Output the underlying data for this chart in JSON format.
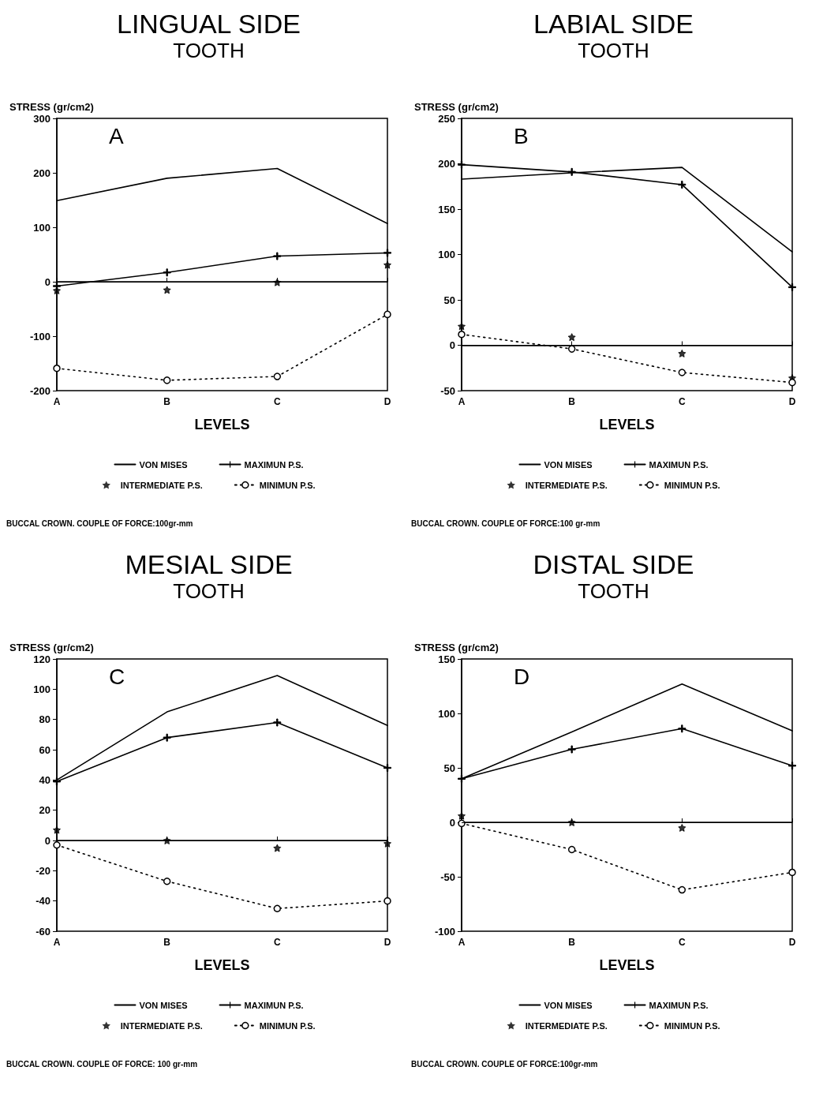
{
  "chart_data": [
    {
      "type": "line",
      "title": "LINGUAL SIDE",
      "subtitle": "TOOTH",
      "ylabel": "STRESS (gr/cm2)",
      "xlabel": "LEVELS",
      "annotations": [
        "A",
        "BUCCAL CROWN. COUPLE OF FORCE:100gr-mm"
      ],
      "categories": [
        "A",
        "B",
        "C",
        "D"
      ],
      "ylim": [
        -200,
        300
      ],
      "yticks": [
        -200,
        -100,
        0,
        100,
        200,
        300
      ],
      "grid": false,
      "legend": "bottom",
      "ref_lines": [
        {
          "axis": "y",
          "value": 0,
          "color": "#000000"
        }
      ],
      "series": [
        {
          "name": "VON MISES",
          "color": "#000000",
          "marker": "none",
          "line_style": "solid",
          "values": [
            149,
            190,
            208,
            107
          ]
        },
        {
          "name": "MAXIMUN P.S.",
          "color": "#000000",
          "marker": "cross",
          "line_style": "solid",
          "values": [
            -8,
            17,
            47,
            53
          ]
        },
        {
          "name": "INTERMEDIATE P.S.",
          "type": "scatter",
          "color": "#000000",
          "marker": "star",
          "values": [
            -16,
            -15,
            -1,
            31
          ]
        },
        {
          "name": "MINIMUN P.S.",
          "color": "#000000",
          "marker": "circle",
          "line_style": "dotted",
          "values": [
            -159,
            -181,
            -174,
            -60
          ]
        }
      ]
    },
    {
      "type": "line",
      "title": "LABIAL SIDE",
      "subtitle": "TOOTH",
      "ylabel": "STRESS (gr/cm2)",
      "xlabel": "LEVELS",
      "annotations": [
        "B",
        "BUCCAL CROWN. COUPLE OF FORCE:100 gr-mm"
      ],
      "categories": [
        "A",
        "B",
        "C",
        "D"
      ],
      "ylim": [
        -50,
        250
      ],
      "yticks": [
        -50,
        0,
        50,
        100,
        150,
        200,
        250
      ],
      "grid": false,
      "legend": "bottom",
      "ref_lines": [
        {
          "axis": "y",
          "value": 0,
          "color": "#000000"
        }
      ],
      "series": [
        {
          "name": "VON MISES",
          "color": "#000000",
          "marker": "none",
          "line_style": "solid",
          "values": [
            183,
            190,
            196,
            103
          ]
        },
        {
          "name": "MAXIMUN P.S.",
          "color": "#000000",
          "marker": "cross",
          "line_style": "solid",
          "values": [
            199,
            191,
            177,
            64
          ]
        },
        {
          "name": "INTERMEDIATE P.S.",
          "type": "scatter",
          "color": "#000000",
          "marker": "star",
          "values": [
            21,
            9,
            -9,
            -36
          ]
        },
        {
          "name": "MINIMUN P.S.",
          "color": "#000000",
          "marker": "circle",
          "line_style": "dotted",
          "values": [
            12,
            -4,
            -30,
            -41
          ]
        }
      ]
    },
    {
      "type": "line",
      "title": "MESIAL SIDE",
      "subtitle": "TOOTH",
      "ylabel": "STRESS (gr/cm2)",
      "xlabel": "LEVELS",
      "annotations": [
        "C",
        "BUCCAL CROWN. COUPLE OF FORCE: 100 gr-mm"
      ],
      "categories": [
        "A",
        "B",
        "C",
        "D"
      ],
      "ylim": [
        -60,
        120
      ],
      "yticks": [
        -60,
        -40,
        -20,
        0,
        20,
        40,
        60,
        80,
        100,
        120
      ],
      "grid": false,
      "legend": "bottom",
      "ref_lines": [
        {
          "axis": "y",
          "value": 0,
          "color": "#000000"
        }
      ],
      "series": [
        {
          "name": "VON MISES",
          "color": "#000000",
          "marker": "none",
          "line_style": "solid",
          "values": [
            40,
            85,
            109,
            76
          ]
        },
        {
          "name": "MAXIMUN P.S.",
          "color": "#000000",
          "marker": "cross",
          "line_style": "solid",
          "values": [
            39,
            68,
            78,
            48
          ]
        },
        {
          "name": "INTERMEDIATE P.S.",
          "type": "scatter",
          "color": "#000000",
          "marker": "star",
          "values": [
            7,
            0,
            -5,
            -2
          ]
        },
        {
          "name": "MINIMUN P.S.",
          "color": "#000000",
          "marker": "circle",
          "line_style": "dotted",
          "values": [
            -3,
            -27,
            -45,
            -40
          ]
        }
      ]
    },
    {
      "type": "line",
      "title": "DISTAL SIDE",
      "subtitle": "TOOTH",
      "ylabel": "STRESS (gr/cm2)",
      "xlabel": "LEVELS",
      "annotations": [
        "D",
        "BUCCAL CROWN. COUPLE OF FORCE:100gr-mm"
      ],
      "categories": [
        "A",
        "B",
        "C",
        "D"
      ],
      "ylim": [
        -100,
        150
      ],
      "yticks": [
        -100,
        -50,
        0,
        50,
        100,
        150
      ],
      "grid": false,
      "legend": "bottom",
      "ref_lines": [
        {
          "axis": "y",
          "value": 0,
          "color": "#000000"
        }
      ],
      "series": [
        {
          "name": "VON MISES",
          "color": "#000000",
          "marker": "none",
          "line_style": "solid",
          "values": [
            40,
            83,
            127,
            84
          ]
        },
        {
          "name": "MAXIMUN P.S.",
          "color": "#000000",
          "marker": "cross",
          "line_style": "solid",
          "values": [
            40,
            67,
            86,
            52
          ]
        },
        {
          "name": "INTERMEDIATE P.S.",
          "type": "scatter",
          "color": "#000000",
          "marker": "star",
          "values": [
            6,
            0,
            -5,
            null
          ]
        },
        {
          "name": "MINIMUN P.S.",
          "color": "#000000",
          "marker": "circle",
          "line_style": "dotted",
          "values": [
            -1,
            -25,
            -62,
            -46
          ]
        }
      ]
    }
  ]
}
